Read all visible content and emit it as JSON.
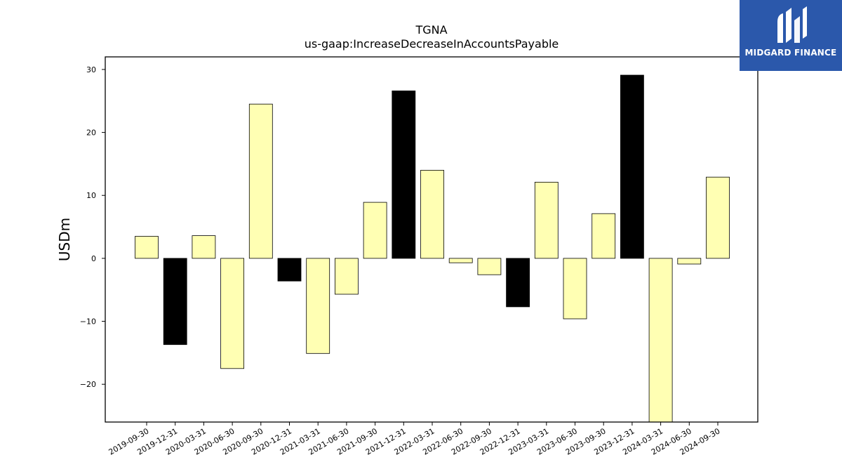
{
  "logo": {
    "text": "MIDGARD FINANCE",
    "background": "#2b58ab",
    "icon": "midgard-logo-icon"
  },
  "chart_data": {
    "type": "bar",
    "title": "TGNA",
    "subtitle": "us-gaap:IncreaseDecreaseInAccountsPayable",
    "xlabel": "",
    "ylabel": "USDm",
    "ylim": [
      -26,
      32
    ],
    "yticks": [
      -20,
      -10,
      0,
      10,
      20,
      30
    ],
    "categories": [
      "2019-09-30",
      "2019-12-31",
      "2020-03-31",
      "2020-06-30",
      "2020-09-30",
      "2020-12-31",
      "2021-03-31",
      "2021-06-30",
      "2021-09-30",
      "2021-12-31",
      "2022-03-31",
      "2022-06-30",
      "2022-09-30",
      "2022-12-31",
      "2023-03-31",
      "2023-06-30",
      "2023-09-30",
      "2023-12-31",
      "2024-03-31",
      "2024-06-30",
      "2024-09-30"
    ],
    "values": [
      3.5,
      -13.7,
      3.6,
      -17.5,
      24.5,
      -3.6,
      -15.1,
      -5.7,
      8.9,
      26.6,
      14.0,
      -0.7,
      -2.6,
      -7.7,
      12.1,
      -9.6,
      7.1,
      29.1,
      -26.5,
      -0.9,
      12.9
    ],
    "highlight": [
      false,
      true,
      false,
      false,
      false,
      true,
      false,
      false,
      false,
      true,
      false,
      false,
      false,
      true,
      false,
      false,
      false,
      true,
      false,
      false,
      false
    ],
    "colors": {
      "normal": "#ffffb3",
      "highlight": "#000000",
      "edge": "#000000"
    },
    "grid": false,
    "legend": "none"
  }
}
